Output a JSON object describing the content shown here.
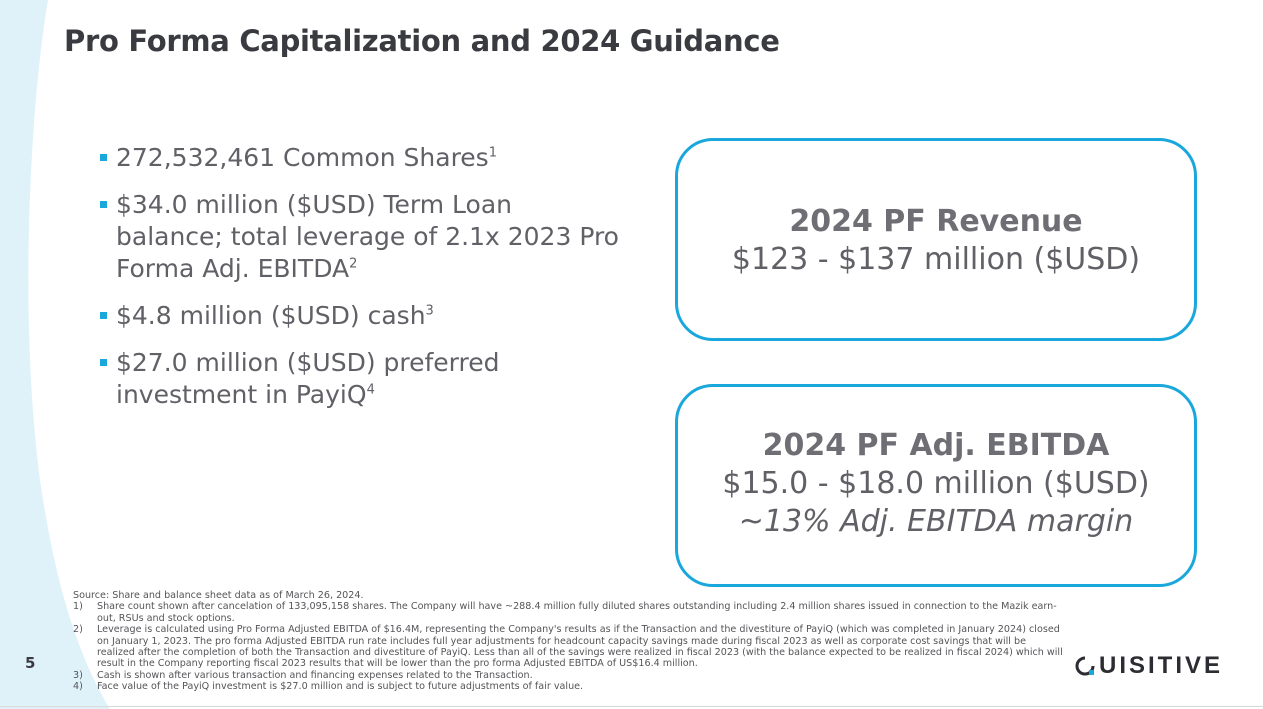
{
  "title": "Pro Forma Capitalization and 2024 Guidance",
  "bullets": [
    {
      "text": "272,532,461 Common Shares",
      "note": "1"
    },
    {
      "text": "$34.0 million ($USD) Term Loan balance; total leverage of 2.1x 2023 Pro Forma Adj. EBITDA",
      "note": "2"
    },
    {
      "text": "$4.8 million ($USD) cash",
      "note": "3"
    },
    {
      "text": "$27.0 million ($USD) preferred investment in PayiQ",
      "note": "4"
    }
  ],
  "revenue_box": {
    "title": "2024 PF Revenue",
    "value": "$123 - $137 million ($USD)"
  },
  "ebitda_box": {
    "title": "2024 PF Adj. EBITDA",
    "value": "$15.0 - $18.0 million ($USD)",
    "margin": "~13% Adj. EBITDA margin"
  },
  "footnotes": {
    "source": "Source: Share and balance sheet data as of March 26, 2024.",
    "items": [
      {
        "num": "1)",
        "text": "Share count shown after cancelation of 133,095,158 shares.  The Company will have ~288.4 million fully diluted shares outstanding including 2.4 million shares issued in connection to the Mazik earn-out, RSUs and stock options."
      },
      {
        "num": "2)",
        "text": "Leverage is calculated using Pro Forma Adjusted EBITDA of $16.4M, representing the Company's results as if the Transaction and the divestiture of PayiQ (which was completed in January 2024) closed on January 1, 2023.  The pro forma Adjusted EBITDA run rate includes full year adjustments for headcount capacity savings made during fiscal 2023 as well as corporate cost savings that will be realized after the completion of both the Transaction and divestiture of PayiQ. Less than all of the savings were realized in fiscal 2023 (with the balance expected to be realized in fiscal 2024) which will result in the Company reporting fiscal 2023 results that will be lower than the pro forma Adjusted EBITDA of US$16.4 million."
      },
      {
        "num": "3)",
        "text": "Cash is shown after various transaction and financing expenses related to the Transaction."
      },
      {
        "num": "4)",
        "text": "Face value of the PayiQ investment is $27.0 million and is subject to future adjustments of fair value."
      }
    ]
  },
  "page_number": "5",
  "logo_text": "UISITIVE",
  "colors": {
    "accent": "#1aa7dc",
    "curve": "#dff2fa",
    "title": "#3a3b40"
  }
}
